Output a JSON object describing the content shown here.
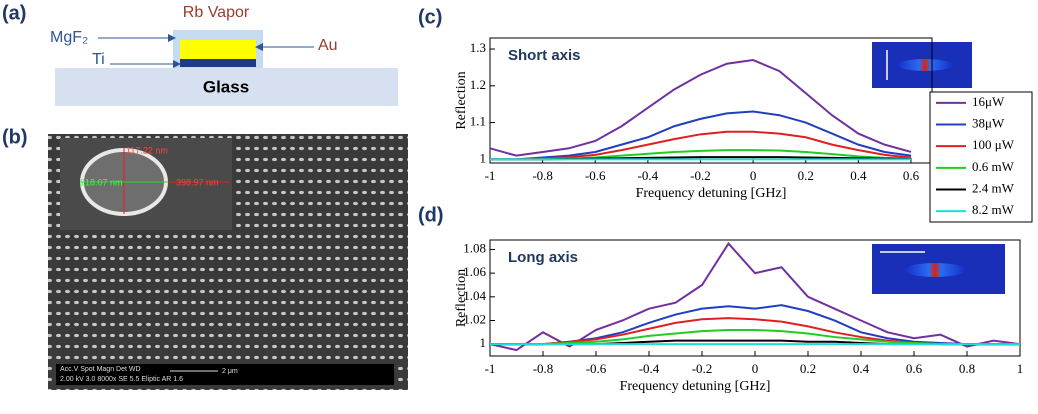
{
  "panel_labels": [
    "(a)",
    "(b)",
    "(c)",
    "(d)"
  ],
  "schematic": {
    "vapor": "Rb Vapor",
    "coating": "MgF₂",
    "adhesion": "Ti",
    "metal": "Au",
    "substrate": "Glass"
  },
  "sem": {
    "height": "117.22 nm",
    "width_inner": "218.07 nm",
    "width_outer": "398.97 nm",
    "info_header": "Acc.V  Spot  Magn   Det  WD",
    "info_values": "2.00 kV  3.0   8000x   SE  5.5   Eliptic  AR 1.6",
    "scale": "2 μm"
  },
  "chart_data": [
    {
      "type": "line",
      "annotation": "Short axis",
      "xlabel": "Frequency detuning [GHz]",
      "ylabel": "Reflection",
      "x": [
        -1,
        -0.9,
        -0.8,
        -0.7,
        -0.6,
        -0.5,
        -0.4,
        -0.3,
        -0.2,
        -0.1,
        0,
        0.1,
        0.2,
        0.3,
        0.4,
        0.5,
        0.6
      ],
      "xlim": [
        -1,
        0.68
      ],
      "xticks": [
        -1,
        -0.8,
        -0.6,
        -0.4,
        -0.2,
        0,
        0.2,
        0.4,
        0.6
      ],
      "ylim": [
        0.99,
        1.33
      ],
      "yticks": [
        1,
        1.1,
        1.2,
        1.3
      ],
      "legend": "right",
      "series": [
        {
          "name": "16μW",
          "color": "#7030a0",
          "values": [
            1.03,
            1.01,
            1.02,
            1.03,
            1.05,
            1.09,
            1.14,
            1.19,
            1.23,
            1.26,
            1.27,
            1.24,
            1.18,
            1.12,
            1.07,
            1.04,
            1.02
          ]
        },
        {
          "name": "38μW",
          "color": "#1f3fbf",
          "values": [
            1.0,
            1.0,
            1.005,
            1.01,
            1.02,
            1.04,
            1.06,
            1.09,
            1.11,
            1.125,
            1.13,
            1.12,
            1.1,
            1.07,
            1.04,
            1.02,
            1.01
          ]
        },
        {
          "name": "100 μW",
          "color": "#e02020",
          "values": [
            1.0,
            1.0,
            1.003,
            1.006,
            1.012,
            1.025,
            1.04,
            1.055,
            1.068,
            1.075,
            1.075,
            1.07,
            1.06,
            1.04,
            1.025,
            1.012,
            1.005
          ]
        },
        {
          "name": "0.6 mW",
          "color": "#22cc22",
          "values": [
            1.0,
            1.0,
            1.0,
            1.002,
            1.005,
            1.01,
            1.015,
            1.02,
            1.023,
            1.025,
            1.025,
            1.024,
            1.02,
            1.014,
            1.008,
            1.004,
            1.002
          ]
        },
        {
          "name": "2.4 mW",
          "color": "#000000",
          "values": [
            1.0,
            1.0,
            1.0,
            1.001,
            1.002,
            1.003,
            1.004,
            1.005,
            1.006,
            1.006,
            1.006,
            1.006,
            1.005,
            1.004,
            1.003,
            1.002,
            1.001
          ]
        },
        {
          "name": "8.2 mW",
          "color": "#22dddd",
          "values": [
            1.0,
            1.0,
            1.0,
            1.0,
            1.0,
            1.0,
            1.0,
            1.0,
            1.0,
            1.0,
            1.0,
            1.0,
            1.0,
            1.0,
            1.0,
            1.0,
            1.0
          ]
        }
      ]
    },
    {
      "type": "line",
      "annotation": "Long axis",
      "xlabel": "Frequency detuning [GHz]",
      "ylabel": "Reflection",
      "x": [
        -1,
        -0.9,
        -0.8,
        -0.7,
        -0.6,
        -0.5,
        -0.4,
        -0.3,
        -0.2,
        -0.1,
        0,
        0.1,
        0.2,
        0.3,
        0.4,
        0.5,
        0.6,
        0.7,
        0.8,
        0.9,
        1
      ],
      "xlim": [
        -1,
        1
      ],
      "xticks": [
        -1,
        -0.8,
        -0.6,
        -0.4,
        -0.2,
        0,
        0.2,
        0.4,
        0.6,
        0.8,
        1
      ],
      "ylim": [
        0.99,
        1.088
      ],
      "yticks": [
        1,
        1.02,
        1.04,
        1.06,
        1.08
      ],
      "series": [
        {
          "color": "#7030a0",
          "values": [
            1.0,
            0.995,
            1.01,
            0.998,
            1.012,
            1.02,
            1.03,
            1.035,
            1.05,
            1.085,
            1.06,
            1.065,
            1.04,
            1.03,
            1.02,
            1.01,
            1.005,
            1.008,
            0.998,
            1.003,
            1.0
          ]
        },
        {
          "color": "#1f3fbf",
          "values": [
            1.0,
            1.0,
            1.0,
            1.002,
            1.005,
            1.01,
            1.018,
            1.025,
            1.03,
            1.032,
            1.03,
            1.033,
            1.028,
            1.02,
            1.01,
            1.005,
            1.002,
            1.001,
            1.0,
            1.0,
            1.0
          ]
        },
        {
          "color": "#e02020",
          "values": [
            1.0,
            1.0,
            1.0,
            1.002,
            1.004,
            1.008,
            1.013,
            1.018,
            1.021,
            1.022,
            1.021,
            1.019,
            1.015,
            1.01,
            1.006,
            1.003,
            1.001,
            1.0,
            1.0,
            1.0,
            1.0
          ]
        },
        {
          "color": "#22cc22",
          "values": [
            1.0,
            1.0,
            1.0,
            1.001,
            1.002,
            1.004,
            1.007,
            1.009,
            1.011,
            1.012,
            1.012,
            1.011,
            1.009,
            1.006,
            1.004,
            1.002,
            1.001,
            1.0,
            1.0,
            1.0,
            1.0
          ]
        },
        {
          "color": "#000000",
          "values": [
            1.0,
            1.0,
            1.0,
            1.0,
            1.0,
            1.001,
            1.002,
            1.003,
            1.003,
            1.003,
            1.003,
            1.003,
            1.002,
            1.002,
            1.001,
            1.0,
            1.0,
            1.0,
            1.0,
            1.0,
            1.0
          ]
        },
        {
          "color": "#22dddd",
          "values": [
            1.0,
            1.0,
            1.0,
            1.0,
            1.0,
            1.0,
            1.0,
            1.0,
            1.0,
            1.0,
            1.0,
            1.0,
            1.0,
            1.0,
            1.0,
            1.0,
            1.0,
            1.0,
            1.0,
            1.0,
            1.0
          ]
        }
      ]
    }
  ]
}
